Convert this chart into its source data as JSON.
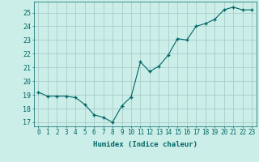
{
  "x": [
    0,
    1,
    2,
    3,
    4,
    5,
    6,
    7,
    8,
    9,
    10,
    11,
    12,
    13,
    14,
    15,
    16,
    17,
    18,
    19,
    20,
    21,
    22,
    23
  ],
  "y": [
    19.2,
    18.9,
    18.9,
    18.9,
    18.8,
    18.3,
    17.55,
    17.35,
    17.0,
    18.2,
    18.85,
    21.4,
    20.7,
    21.1,
    21.9,
    23.1,
    23.0,
    24.0,
    24.2,
    24.5,
    25.2,
    25.4,
    25.2,
    25.2
  ],
  "line_color": "#006666",
  "marker": "+",
  "marker_size": 3.5,
  "bg_color": "#cceee8",
  "grid_color": "#aacccc",
  "xlabel": "Humidex (Indice chaleur)",
  "ylabel_ticks": [
    17,
    18,
    19,
    20,
    21,
    22,
    23,
    24,
    25
  ],
  "xlim": [
    -0.5,
    23.5
  ],
  "ylim": [
    16.7,
    25.8
  ],
  "tick_color": "#006666",
  "label_fontsize": 5.5,
  "axis_fontsize": 6.5
}
